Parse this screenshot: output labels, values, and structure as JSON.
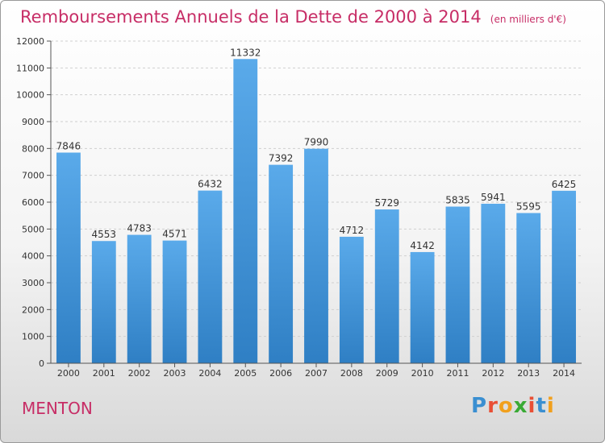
{
  "title": "Remboursements Annuels de la Dette de 2000 à 2014",
  "unit": "(en milliers d'€)",
  "city": "MENTON",
  "logo": {
    "letters": [
      "P",
      "r",
      "o",
      "x",
      "i",
      "t",
      "i"
    ],
    "colors": [
      "#3a8fd1",
      "#e94f35",
      "#f1a01d",
      "#3aaa35",
      "#e94f35",
      "#3a8fd1",
      "#f1a01d"
    ]
  },
  "colors": {
    "bar_light": "#5aaaea",
    "bar_dark": "#2f7fc4",
    "axis": "#555555",
    "grid": "#cfcfcf",
    "text": "#333333"
  },
  "chart_data": {
    "type": "bar",
    "categories": [
      "2000",
      "2001",
      "2002",
      "2003",
      "2004",
      "2005",
      "2006",
      "2007",
      "2008",
      "2009",
      "2010",
      "2011",
      "2012",
      "2013",
      "2014"
    ],
    "values": [
      7846,
      4553,
      4783,
      4571,
      6432,
      11332,
      7392,
      7990,
      4712,
      5729,
      4142,
      5835,
      5941,
      5595,
      6425
    ],
    "ylim": [
      0,
      12000
    ],
    "yticks": [
      0,
      1000,
      2000,
      3000,
      4000,
      5000,
      6000,
      7000,
      8000,
      9000,
      10000,
      11000,
      12000
    ],
    "grid": true
  }
}
